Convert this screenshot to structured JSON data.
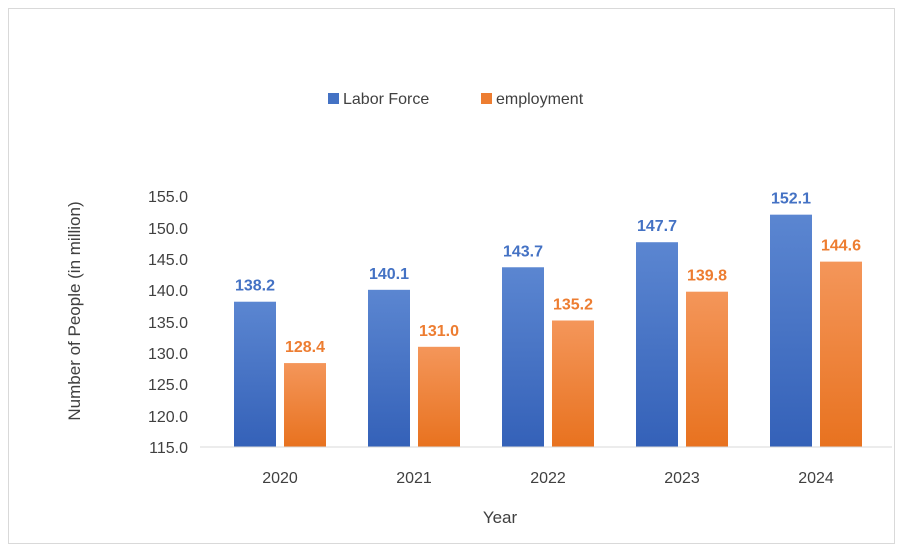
{
  "chart_data": {
    "type": "bar",
    "categories": [
      "2020",
      "2021",
      "2022",
      "2023",
      "2024"
    ],
    "series": [
      {
        "name": "Labor Force",
        "values": [
          138.2,
          140.1,
          143.7,
          147.7,
          152.1
        ],
        "color": "#4472C4"
      },
      {
        "name": "employment",
        "values": [
          128.4,
          131.0,
          135.2,
          139.8,
          144.6
        ],
        "color": "#ED7D31"
      }
    ],
    "data_labels": {
      "Labor Force": [
        "138.2",
        "140.1",
        "143.7",
        "147.7",
        "152.1"
      ],
      "employment": [
        "128.4",
        "131.0",
        "135.2",
        "139.8",
        "144.6"
      ]
    },
    "xlabel": "Year",
    "ylabel": "Number of People (in million)",
    "ylim": [
      115,
      155
    ],
    "yticks": [
      "115.0",
      "120.0",
      "125.0",
      "130.0",
      "135.0",
      "140.0",
      "145.0",
      "150.0",
      "155.0"
    ],
    "grid": false,
    "legend_position": "top"
  }
}
